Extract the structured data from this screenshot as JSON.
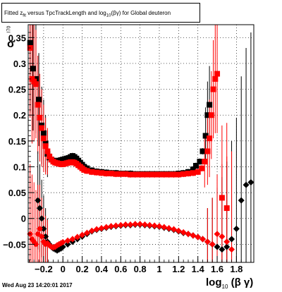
{
  "title": {
    "pre": "Fitted z",
    "sub": "fit",
    "mid": " versus TpcTrackLength and log",
    "sub2": "10",
    "post": "(βγ) for Global deuteron"
  },
  "ylabel": {
    "main": "σ",
    "sub": "I70"
  },
  "xlabel": {
    "main": "log",
    "sub": "10",
    "post": " (β γ)"
  },
  "footer": "Wed Aug 23 14:20:01 2017",
  "colors": {
    "series_black": "#000000",
    "series_red": "#ff0000",
    "grid": "#000000",
    "frame": "#000000"
  },
  "chart_data": {
    "type": "scatter",
    "grid": true,
    "xlim": [
      -0.36,
      1.98
    ],
    "ylim": [
      -0.085,
      0.375
    ],
    "xticks": [
      -0.2,
      0,
      0.2,
      0.4,
      0.6,
      0.8,
      1,
      1.2,
      1.4,
      1.6,
      1.8
    ],
    "xtick_labels": [
      "−0.2",
      "0",
      "0.2",
      "0.4",
      "0.6",
      "0.8",
      "1",
      "1.2",
      "1.4",
      "1.6",
      "1.8"
    ],
    "yticks": [
      -0.05,
      0,
      0.05,
      0.1,
      0.15,
      0.2,
      0.25,
      0.3,
      0.35
    ],
    "ytick_labels": [
      "−0.05",
      "0",
      "0.05",
      "0.1",
      "0.15",
      "0.2",
      "0.25",
      "0.3",
      "0.35"
    ],
    "series": [
      {
        "color": "black",
        "marker": "square",
        "points": [
          [
            -0.34,
            0.34
          ],
          [
            -0.31,
            0.29
          ],
          [
            -0.28,
            0.27
          ],
          [
            -0.25,
            0.23
          ],
          [
            -0.22,
            0.18
          ],
          [
            -0.2,
            0.165
          ],
          [
            -0.18,
            0.145
          ],
          [
            -0.16,
            0.125
          ],
          [
            -0.14,
            0.118
          ],
          [
            -0.12,
            0.114
          ],
          [
            -0.1,
            0.112
          ],
          [
            -0.08,
            0.11
          ],
          [
            -0.06,
            0.111
          ],
          [
            -0.04,
            0.112
          ],
          [
            -0.02,
            0.113
          ],
          [
            0.0,
            0.114
          ],
          [
            0.02,
            0.115
          ],
          [
            0.04,
            0.116
          ],
          [
            0.06,
            0.117
          ],
          [
            0.08,
            0.119
          ],
          [
            0.1,
            0.121
          ],
          [
            0.12,
            0.119
          ],
          [
            0.14,
            0.116
          ],
          [
            0.16,
            0.112
          ],
          [
            0.18,
            0.108
          ],
          [
            0.2,
            0.104
          ],
          [
            0.22,
            0.1
          ],
          [
            0.25,
            0.097
          ],
          [
            0.3,
            0.093
          ],
          [
            0.35,
            0.091
          ],
          [
            0.4,
            0.09
          ],
          [
            0.45,
            0.089
          ],
          [
            0.5,
            0.088
          ],
          [
            0.55,
            0.088
          ],
          [
            0.6,
            0.087
          ],
          [
            0.65,
            0.087
          ],
          [
            0.7,
            0.087
          ],
          [
            0.75,
            0.086
          ],
          [
            0.8,
            0.086
          ],
          [
            0.85,
            0.086
          ],
          [
            0.9,
            0.086
          ],
          [
            0.95,
            0.086
          ],
          [
            1.0,
            0.086
          ],
          [
            1.05,
            0.086
          ],
          [
            1.1,
            0.086
          ],
          [
            1.15,
            0.086
          ],
          [
            1.2,
            0.087
          ],
          [
            1.25,
            0.088
          ],
          [
            1.3,
            0.09
          ],
          [
            1.35,
            0.095
          ],
          [
            1.38,
            0.102
          ],
          [
            1.42,
            0.11
          ],
          [
            1.45,
            0.13
          ],
          [
            1.48,
            0.16
          ],
          [
            1.5,
            0.2
          ],
          [
            1.52,
            0.22
          ]
        ]
      },
      {
        "color": "red",
        "marker": "square",
        "points": [
          [
            -0.34,
            0.33
          ],
          [
            -0.32,
            0.27
          ],
          [
            -0.3,
            0.265
          ],
          [
            -0.28,
            0.26
          ],
          [
            -0.26,
            0.22
          ],
          [
            -0.24,
            0.195
          ],
          [
            -0.22,
            0.175
          ],
          [
            -0.2,
            0.155
          ],
          [
            -0.18,
            0.14
          ],
          [
            -0.16,
            0.13
          ],
          [
            -0.14,
            0.12
          ],
          [
            -0.12,
            0.114
          ],
          [
            -0.1,
            0.11
          ],
          [
            -0.08,
            0.108
          ],
          [
            -0.06,
            0.107
          ],
          [
            -0.04,
            0.106
          ],
          [
            -0.02,
            0.105
          ],
          [
            0.0,
            0.105
          ],
          [
            0.02,
            0.106
          ],
          [
            0.04,
            0.107
          ],
          [
            0.06,
            0.108
          ],
          [
            0.08,
            0.109
          ],
          [
            0.1,
            0.109
          ],
          [
            0.12,
            0.108
          ],
          [
            0.14,
            0.106
          ],
          [
            0.16,
            0.103
          ],
          [
            0.18,
            0.1
          ],
          [
            0.2,
            0.097
          ],
          [
            0.22,
            0.094
          ],
          [
            0.25,
            0.092
          ],
          [
            0.3,
            0.09
          ],
          [
            0.35,
            0.089
          ],
          [
            0.4,
            0.088
          ],
          [
            0.45,
            0.087
          ],
          [
            0.5,
            0.087
          ],
          [
            0.55,
            0.086
          ],
          [
            0.6,
            0.086
          ],
          [
            0.65,
            0.086
          ],
          [
            0.7,
            0.085
          ],
          [
            0.75,
            0.085
          ],
          [
            0.8,
            0.085
          ],
          [
            0.85,
            0.085
          ],
          [
            0.9,
            0.085
          ],
          [
            0.95,
            0.085
          ],
          [
            1.0,
            0.085
          ],
          [
            1.05,
            0.085
          ],
          [
            1.1,
            0.085
          ],
          [
            1.15,
            0.085
          ],
          [
            1.2,
            0.085
          ],
          [
            1.25,
            0.086
          ],
          [
            1.3,
            0.087
          ],
          [
            1.35,
            0.088
          ],
          [
            1.4,
            0.09
          ],
          [
            1.44,
            0.097
          ],
          [
            1.47,
            0.11
          ],
          [
            1.5,
            0.13
          ],
          [
            1.52,
            0.155
          ],
          [
            1.54,
            0.2
          ],
          [
            1.56,
            0.25
          ],
          [
            1.58,
            0.27
          ],
          [
            1.6,
            0.28
          ],
          [
            1.65,
            0.04
          ],
          [
            1.7,
            0.02
          ]
        ]
      },
      {
        "color": "black",
        "marker": "diamond",
        "points": [
          [
            -0.26,
            0.035
          ],
          [
            -0.24,
            0.02
          ],
          [
            -0.22,
            0.0
          ],
          [
            -0.2,
            -0.02
          ],
          [
            -0.18,
            -0.035
          ],
          [
            -0.16,
            -0.045
          ],
          [
            -0.14,
            -0.05
          ],
          [
            -0.12,
            -0.055
          ],
          [
            -0.1,
            -0.058
          ],
          [
            -0.08,
            -0.06
          ],
          [
            -0.06,
            -0.062
          ],
          [
            -0.04,
            -0.06
          ],
          [
            -0.02,
            -0.058
          ],
          [
            0.0,
            -0.055
          ],
          [
            0.05,
            -0.05
          ],
          [
            0.1,
            -0.045
          ],
          [
            0.15,
            -0.04
          ],
          [
            0.2,
            -0.035
          ],
          [
            0.25,
            -0.03
          ],
          [
            0.3,
            -0.025
          ],
          [
            0.35,
            -0.022
          ],
          [
            0.4,
            -0.02
          ],
          [
            0.45,
            -0.018
          ],
          [
            0.5,
            -0.016
          ],
          [
            0.55,
            -0.015
          ],
          [
            0.6,
            -0.014
          ],
          [
            0.65,
            -0.013
          ],
          [
            0.7,
            -0.013
          ],
          [
            0.75,
            -0.012
          ],
          [
            0.8,
            -0.012
          ],
          [
            0.85,
            -0.013
          ],
          [
            0.9,
            -0.014
          ],
          [
            0.95,
            -0.015
          ],
          [
            1.0,
            -0.016
          ],
          [
            1.05,
            -0.018
          ],
          [
            1.1,
            -0.02
          ],
          [
            1.15,
            -0.022
          ],
          [
            1.2,
            -0.025
          ],
          [
            1.25,
            -0.028
          ],
          [
            1.3,
            -0.03
          ],
          [
            1.35,
            -0.033
          ],
          [
            1.4,
            -0.036
          ],
          [
            1.45,
            -0.04
          ],
          [
            1.5,
            -0.045
          ],
          [
            1.55,
            -0.05
          ],
          [
            1.6,
            -0.055
          ],
          [
            1.65,
            -0.06
          ],
          [
            1.7,
            -0.055
          ],
          [
            1.75,
            -0.04
          ],
          [
            1.8,
            -0.02
          ],
          [
            1.85,
            0.035
          ],
          [
            1.9,
            0.065
          ],
          [
            1.95,
            0.07
          ]
        ]
      },
      {
        "color": "red",
        "marker": "diamond",
        "points": [
          [
            -0.34,
            -0.03
          ],
          [
            -0.32,
            -0.04
          ],
          [
            -0.3,
            -0.045
          ],
          [
            -0.28,
            -0.05
          ],
          [
            -0.26,
            -0.03
          ],
          [
            -0.24,
            -0.02
          ],
          [
            -0.22,
            -0.035
          ],
          [
            -0.2,
            -0.045
          ],
          [
            -0.18,
            -0.05
          ],
          [
            -0.16,
            -0.048
          ],
          [
            -0.14,
            -0.052
          ],
          [
            -0.12,
            -0.055
          ],
          [
            -0.1,
            -0.056
          ],
          [
            -0.08,
            -0.055
          ],
          [
            -0.06,
            -0.052
          ],
          [
            -0.04,
            -0.05
          ],
          [
            -0.02,
            -0.048
          ],
          [
            0.0,
            -0.046
          ],
          [
            0.05,
            -0.043
          ],
          [
            0.1,
            -0.04
          ],
          [
            0.15,
            -0.036
          ],
          [
            0.2,
            -0.032
          ],
          [
            0.25,
            -0.028
          ],
          [
            0.3,
            -0.024
          ],
          [
            0.35,
            -0.021
          ],
          [
            0.4,
            -0.019
          ],
          [
            0.45,
            -0.017
          ],
          [
            0.5,
            -0.015
          ],
          [
            0.55,
            -0.014
          ],
          [
            0.6,
            -0.013
          ],
          [
            0.65,
            -0.012
          ],
          [
            0.7,
            -0.012
          ],
          [
            0.75,
            -0.011
          ],
          [
            0.8,
            -0.011
          ],
          [
            0.85,
            -0.012
          ],
          [
            0.9,
            -0.013
          ],
          [
            0.95,
            -0.014
          ],
          [
            1.0,
            -0.015
          ],
          [
            1.05,
            -0.017
          ],
          [
            1.1,
            -0.019
          ],
          [
            1.15,
            -0.021
          ],
          [
            1.2,
            -0.024
          ],
          [
            1.25,
            -0.027
          ],
          [
            1.3,
            -0.03
          ],
          [
            1.35,
            -0.033
          ],
          [
            1.4,
            -0.036
          ],
          [
            1.45,
            -0.04
          ],
          [
            1.5,
            -0.045
          ],
          [
            1.55,
            -0.05
          ],
          [
            1.6,
            -0.03
          ],
          [
            1.65,
            -0.035
          ],
          [
            1.7,
            -0.045
          ],
          [
            1.75,
            -0.06
          ]
        ]
      }
    ]
  }
}
